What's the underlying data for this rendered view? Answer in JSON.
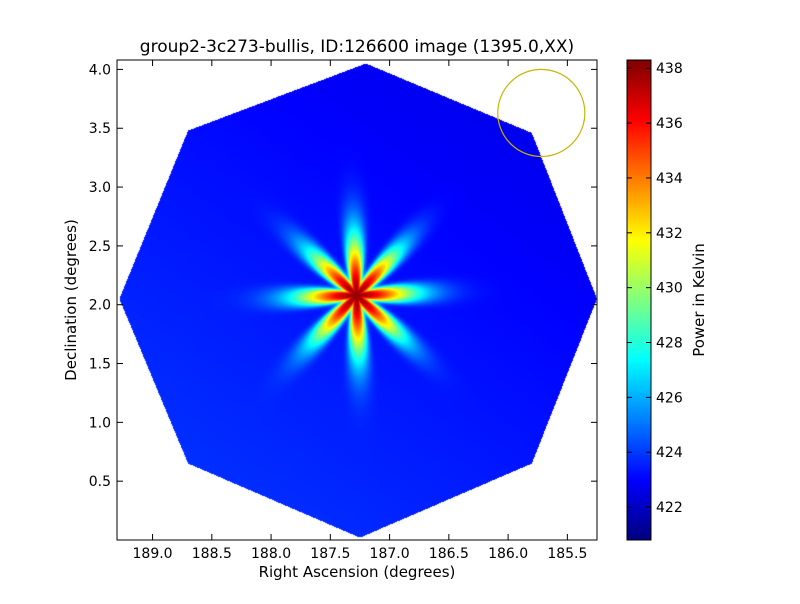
{
  "chart_data": {
    "type": "heatmap",
    "title": "group2-3c273-bullis, ID:126600 image (1395.0,XX)",
    "xlabel": "Right Ascension (degrees)",
    "ylabel": "Declination (degrees)",
    "xlim": [
      189.3,
      185.25
    ],
    "ylim": [
      0.0,
      4.08
    ],
    "x_ticks": [
      189.0,
      188.5,
      188.0,
      187.5,
      187.0,
      186.5,
      186.0,
      185.5
    ],
    "x_tick_labels": [
      "189.0",
      "188.5",
      "188.0",
      "187.5",
      "187.0",
      "186.5",
      "186.0",
      "185.5"
    ],
    "y_ticks": [
      0.5,
      1.0,
      1.5,
      2.0,
      2.5,
      3.0,
      3.5,
      4.0
    ],
    "y_tick_labels": [
      "0.5",
      "1.0",
      "1.5",
      "2.0",
      "2.5",
      "3.0",
      "3.5",
      "4.0"
    ],
    "colorbar": {
      "label": "Power in Kelvin",
      "colormap": "jet",
      "range": [
        420.8,
        438.3
      ],
      "ticks": [
        422,
        424,
        426,
        428,
        430,
        432,
        434,
        436,
        438
      ],
      "tick_labels": [
        "422",
        "424",
        "426",
        "428",
        "430",
        "432",
        "434",
        "436",
        "438"
      ]
    },
    "field_outline_octagon": [
      [
        187.2,
        4.05
      ],
      [
        185.8,
        3.46
      ],
      [
        185.25,
        2.05
      ],
      [
        185.8,
        0.65
      ],
      [
        187.25,
        0.02
      ],
      [
        188.7,
        0.65
      ],
      [
        189.28,
        2.05
      ],
      [
        188.7,
        3.48
      ]
    ],
    "source": {
      "ra": 187.28,
      "dec": 2.08,
      "peak": 438.0
    },
    "background_level": 423.3,
    "beam_circle": {
      "ra": 185.72,
      "dec": 3.63,
      "radius": 0.37,
      "color": "#c8b400"
    }
  }
}
